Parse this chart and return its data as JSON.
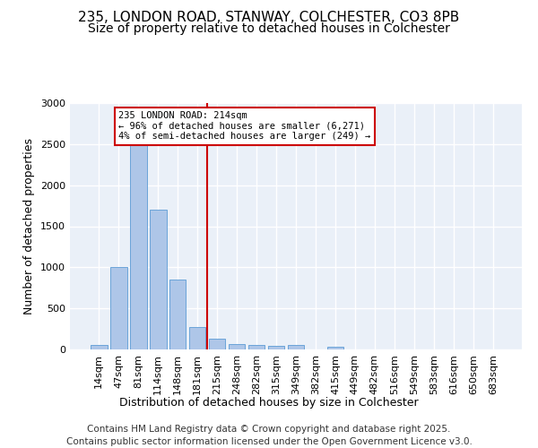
{
  "title1": "235, LONDON ROAD, STANWAY, COLCHESTER, CO3 8PB",
  "title2": "Size of property relative to detached houses in Colchester",
  "xlabel": "Distribution of detached houses by size in Colchester",
  "ylabel": "Number of detached properties",
  "categories": [
    "14sqm",
    "47sqm",
    "81sqm",
    "114sqm",
    "148sqm",
    "181sqm",
    "215sqm",
    "248sqm",
    "282sqm",
    "315sqm",
    "349sqm",
    "382sqm",
    "415sqm",
    "449sqm",
    "482sqm",
    "516sqm",
    "549sqm",
    "583sqm",
    "616sqm",
    "650sqm",
    "683sqm"
  ],
  "values": [
    50,
    1000,
    2500,
    1700,
    850,
    270,
    130,
    70,
    50,
    40,
    50,
    5,
    30,
    0,
    0,
    0,
    0,
    0,
    0,
    0,
    0
  ],
  "bar_color": "#aec6e8",
  "bar_edge_color": "#5b9bd5",
  "vline_x_index": 6,
  "vline_color": "#cc0000",
  "annotation_text": "235 LONDON ROAD: 214sqm\n← 96% of detached houses are smaller (6,271)\n4% of semi-detached houses are larger (249) →",
  "annotation_box_color": "#cc0000",
  "ylim": [
    0,
    3000
  ],
  "yticks": [
    0,
    500,
    1000,
    1500,
    2000,
    2500,
    3000
  ],
  "background_color": "#eaf0f8",
  "footer": "Contains HM Land Registry data © Crown copyright and database right 2025.\nContains public sector information licensed under the Open Government Licence v3.0.",
  "grid_color": "#ffffff",
  "title1_fontsize": 11,
  "title2_fontsize": 10,
  "xlabel_fontsize": 9,
  "ylabel_fontsize": 9,
  "tick_fontsize": 8,
  "footer_fontsize": 7.5
}
